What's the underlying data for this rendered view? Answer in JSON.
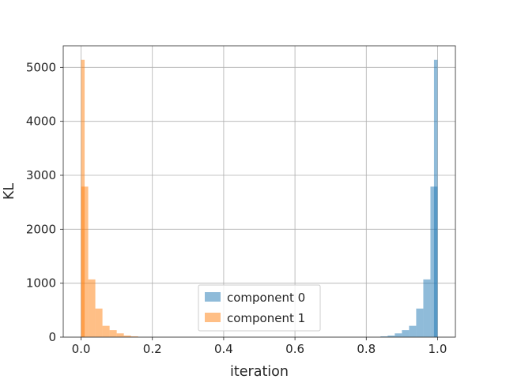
{
  "chart_data": {
    "type": "bar",
    "xlabel": "iteration",
    "ylabel": "KL",
    "xlim": [
      -0.05,
      1.05
    ],
    "ylim": [
      0,
      5400
    ],
    "xticks": [
      "0.0",
      "0.2",
      "0.4",
      "0.6",
      "0.8",
      "1.0"
    ],
    "yticks": [
      "0",
      "1000",
      "2000",
      "3000",
      "4000",
      "5000"
    ],
    "grid": true,
    "legend_position": "bottom-center",
    "bin_width": 0.02,
    "series": [
      {
        "name": "component 0",
        "color": "#1f77b4",
        "bin_starts": [
          0.84,
          0.86,
          0.88,
          0.9,
          0.92,
          0.94,
          0.96,
          0.98
        ],
        "values": [
          15,
          30,
          70,
          130,
          210,
          530,
          1070,
          2790
        ]
      },
      {
        "name": "component 1",
        "color": "#ff7f0e",
        "bin_starts": [
          0.0,
          0.02,
          0.04,
          0.06,
          0.08,
          0.1,
          0.12,
          0.14
        ],
        "values": [
          2790,
          1070,
          530,
          210,
          130,
          70,
          30,
          15
        ]
      }
    ],
    "peak_bars": [
      {
        "series": "component 1",
        "x_start": 0.0,
        "x_end": 0.01,
        "value": 5140
      },
      {
        "series": "component 0",
        "x_start": 0.99,
        "x_end": 1.0,
        "value": 5140
      }
    ]
  }
}
